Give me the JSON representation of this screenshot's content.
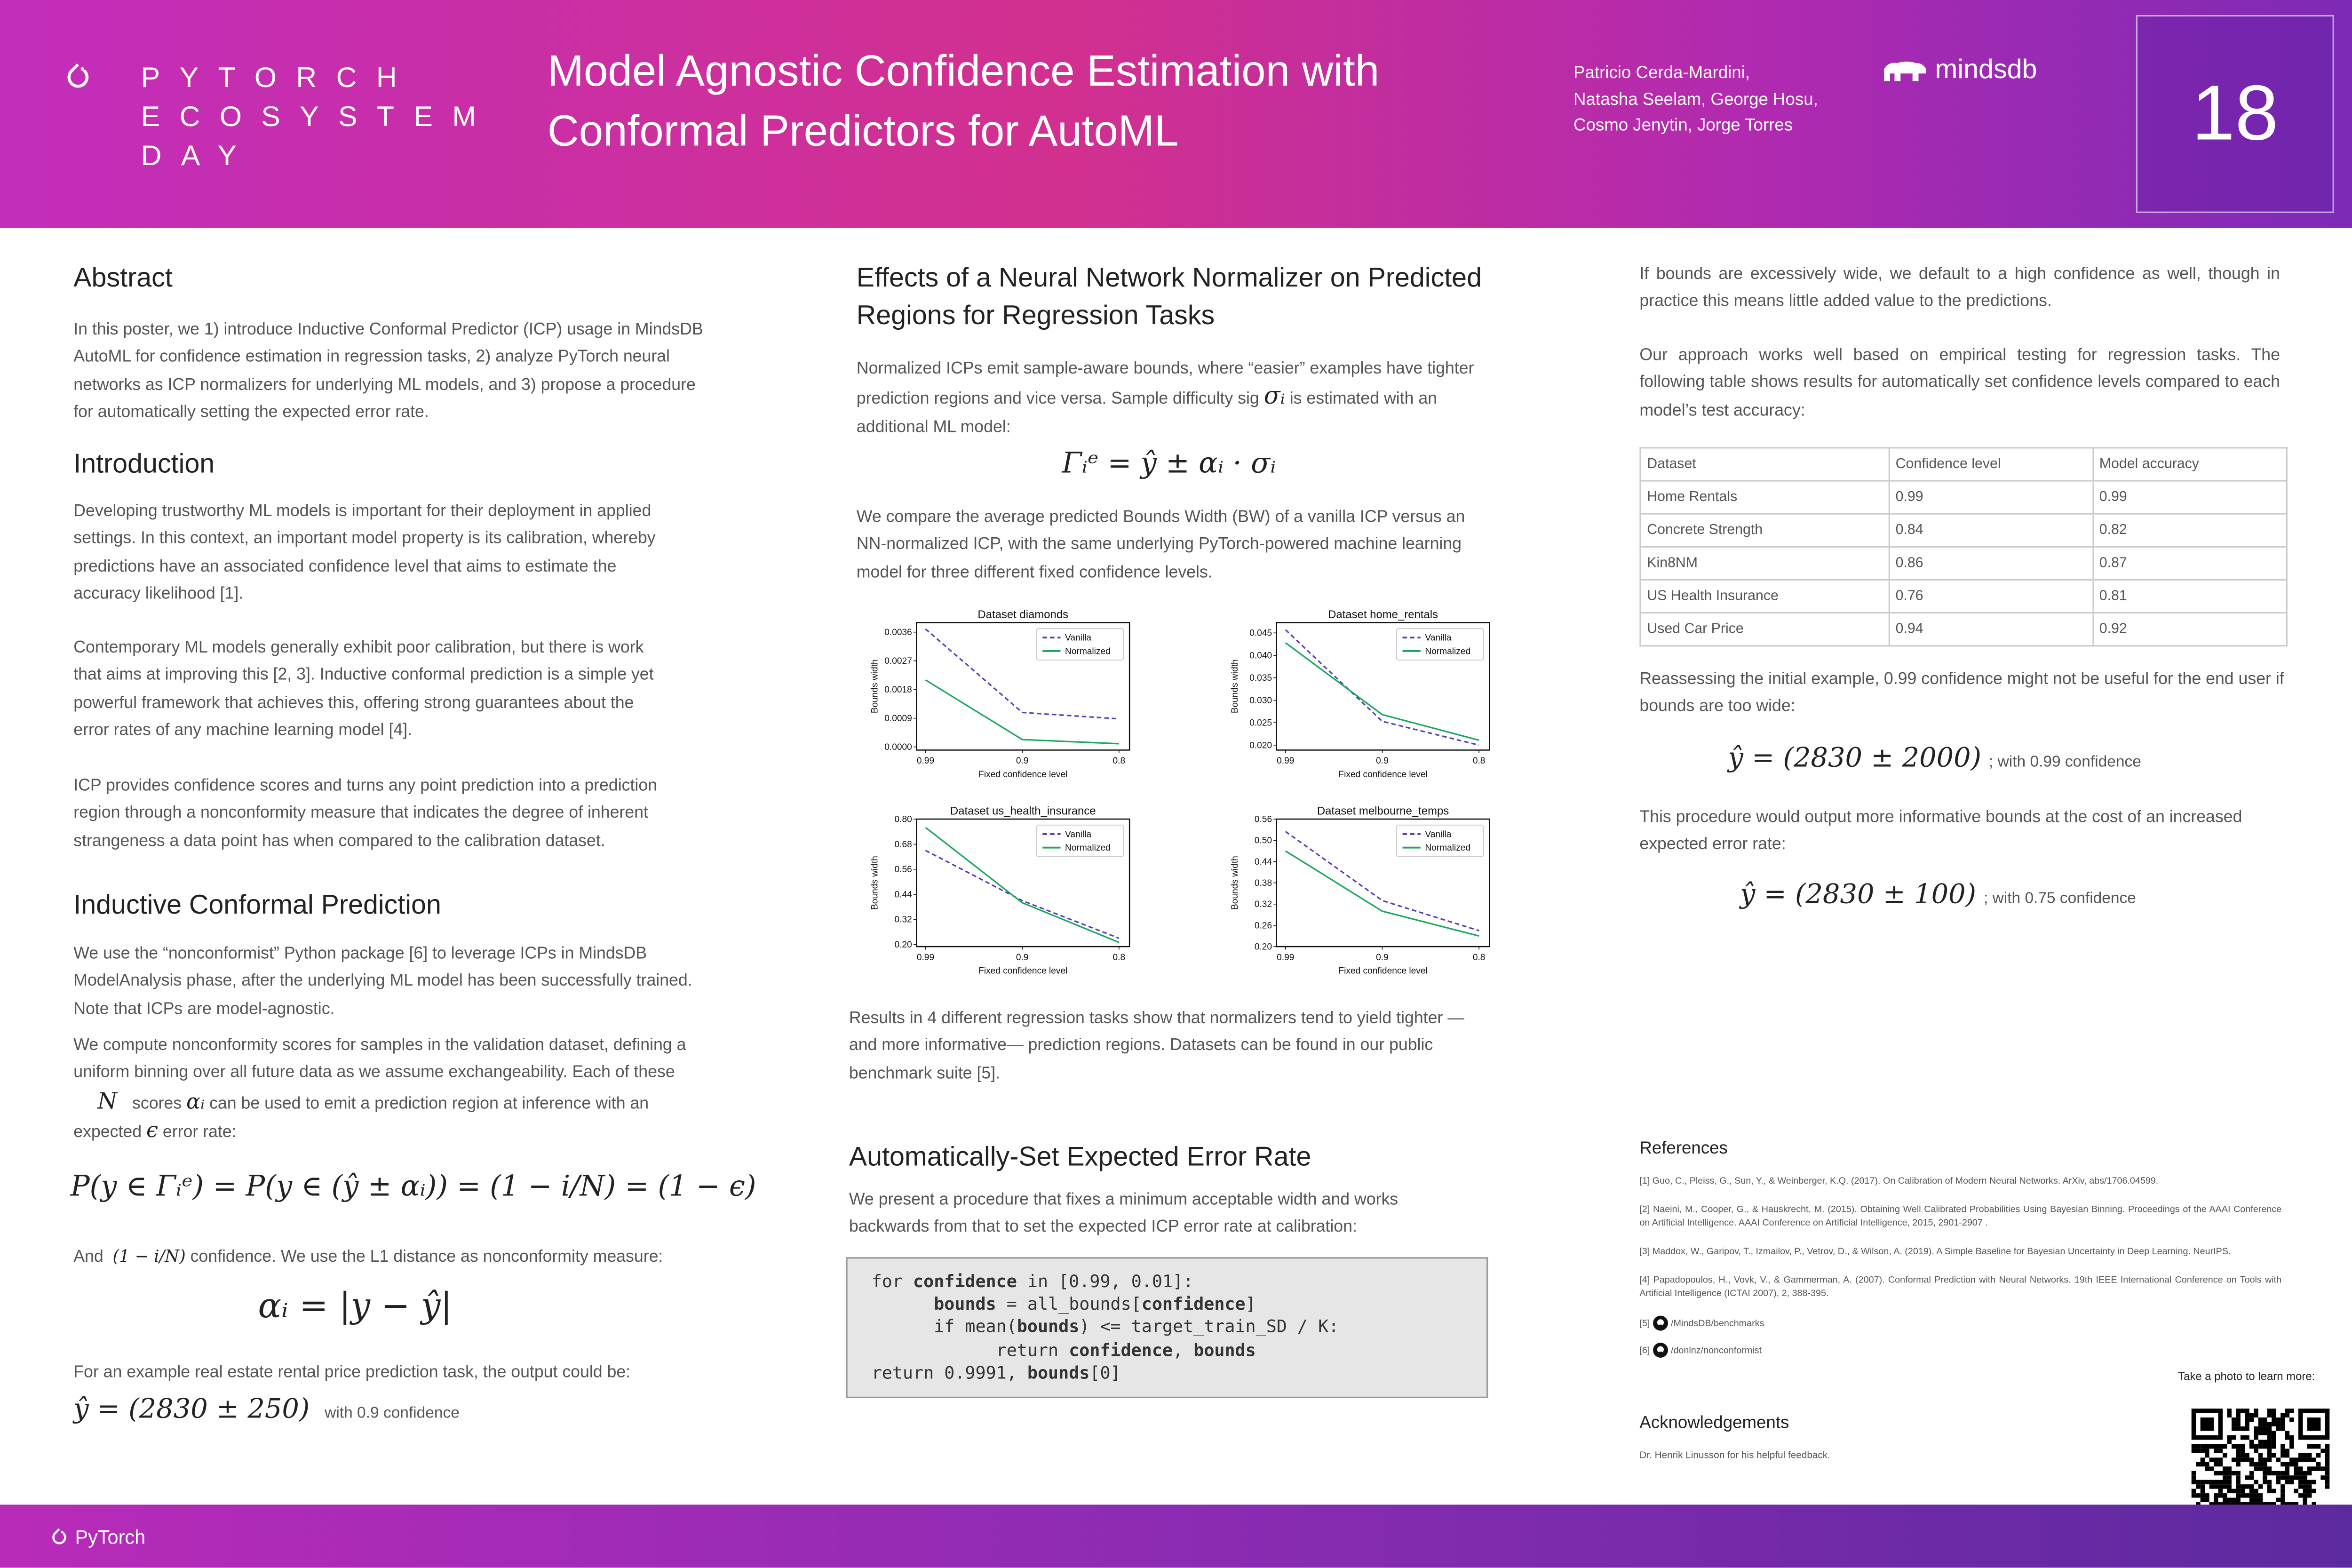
{
  "header": {
    "event": [
      "PYTORCH",
      "ECOSYSTEM",
      "DAY"
    ],
    "title": [
      "Model Agnostic Confidence Estimation with",
      "Conformal Predictors for AutoML"
    ],
    "authors": [
      "Patricio Cerda-Mardini,",
      "Natasha Seelam, George Hosu,",
      "Cosmo Jenytin, Jorge Torres"
    ],
    "logo": "mindsdb",
    "poster_number": "18"
  },
  "footer": {
    "logo": "PyTorch"
  },
  "abstract": {
    "heading": "Abstract",
    "text": "In this poster, we 1) introduce Inductive Conformal Predictor (ICP) usage in MindsDB AutoML for confidence estimation in regression tasks, 2) analyze PyTorch neural networks as ICP normalizers for underlying ML models, and 3) propose a procedure for automatically setting the expected error rate."
  },
  "introduction": {
    "heading": "Introduction",
    "paragraphs": [
      "Developing trustworthy ML models is important for their deployment in applied settings. In this context, an important model property is its calibration, whereby predictions have an associated confidence level that aims to estimate the accuracy likelihood [1].",
      "Contemporary ML models generally exhibit poor calibration, but there is work that aims at improving this [2, 3]. Inductive conformal prediction is a simple yet powerful framework that achieves this, offering strong guarantees about the error rates of any machine learning model [4].",
      "ICP provides confidence scores and turns any point prediction into a prediction region through a nonconformity measure that indicates the degree of inherent strangeness a data point has when compared to the calibration dataset."
    ]
  },
  "icp": {
    "heading": "Inductive Conformal Prediction",
    "p1": "We use the “nonconformist” Python package [6] to leverage ICPs in MindsDB ModelAnalysis phase, after the underlying ML model has been successfully trained. Note that ICPs are model-agnostic.",
    "p2": "We compute nonconformity scores for samples in the validation dataset, defining a uniform binning over all future data as we assume exchangeability. Each of these",
    "p3a": "N",
    "p3b": "scores",
    "p3c": "αᵢ",
    "p3d": "can be used to emit a prediction region at inference with an",
    "p4a": "expected",
    "p4b": "ϵ",
    "p4c": "error rate:",
    "eq1": "P(y ∈ Γᵢᵉ) = P(y ∈ (ŷ ± αᵢ)) = (1 − i/N) = (1 − ϵ)",
    "and_a": "And",
    "and_b": "(1 − i/N)",
    "and_c": "confidence. We use the L1 distance as nonconformity measure:",
    "eq2": "αᵢ = |y − ŷ|",
    "example": "For an example real estate rental price prediction task, the output could be:",
    "eq3": "ŷ = (2830 ± 250)",
    "eq3_note": "with 0.9 confidence"
  },
  "effects": {
    "heading": "Effects of a Neural Network Normalizer on Predicted Regions for Regression Tasks",
    "p1a": "Normalized ICPs emit sample-aware bounds, where “easier” examples have tighter prediction regions and vice versa. Sample difficulty sig",
    "p1b": "σᵢ",
    "p1c": "is estimated with an additional ML model:",
    "eq": "Γᵢᵉ = ŷ ± αᵢ · σᵢ",
    "p2": "We compare the average predicted Bounds Width (BW) of a vanilla ICP versus an NN-normalized ICP, with the same underlying PyTorch-powered machine learning model for three different fixed confidence levels.",
    "p3": "Results in 4 different regression tasks show that normalizers tend to yield tighter —and more informative— prediction regions. Datasets can be found in our public benchmark suite [5]."
  },
  "chart_data": [
    {
      "type": "line",
      "title": "Dataset diamonds",
      "xlabel": "Fixed confidence level",
      "ylabel": "Bounds width",
      "categories": [
        "0.99",
        "0.9",
        "0.8"
      ],
      "yticks": [
        "0.0000",
        "0.0009",
        "0.0018",
        "0.0027",
        "0.0036"
      ],
      "ylim": [
        -0.0001,
        0.0039
      ],
      "legend": "top-right",
      "series": [
        {
          "name": "Vanilla",
          "values": [
            0.0037,
            0.00108,
            0.00088
          ],
          "color": "#5b3cb4",
          "dash": true
        },
        {
          "name": "Normalized",
          "values": [
            0.0021,
            0.00023,
            0.0001
          ],
          "color": "#1aa860",
          "dash": false
        }
      ]
    },
    {
      "type": "line",
      "title": "Dataset home_rentals",
      "xlabel": "Fixed confidence level",
      "ylabel": "Bounds width",
      "categories": [
        "0.99",
        "0.9",
        "0.8"
      ],
      "yticks": [
        "0.020",
        "0.025",
        "0.030",
        "0.035",
        "0.040",
        "0.045"
      ],
      "ylim": [
        0.0189,
        0.0473
      ],
      "legend": "top-right",
      "series": [
        {
          "name": "Vanilla",
          "values": [
            0.0457,
            0.0253,
            0.02
          ],
          "color": "#5b3cb4",
          "dash": true
        },
        {
          "name": "Normalized",
          "values": [
            0.0428,
            0.0268,
            0.0211
          ],
          "color": "#1aa860",
          "dash": false
        }
      ]
    },
    {
      "type": "line",
      "title": "Dataset us_health_insurance",
      "xlabel": "Fixed confidence level",
      "ylabel": "Bounds width",
      "categories": [
        "0.99",
        "0.9",
        "0.8"
      ],
      "yticks": [
        "0.20",
        "0.32",
        "0.44",
        "0.56",
        "0.68",
        "0.80"
      ],
      "ylim": [
        0.19,
        0.8
      ],
      "legend": "top-right",
      "series": [
        {
          "name": "Vanilla",
          "values": [
            0.65,
            0.41,
            0.23
          ],
          "color": "#5b3cb4",
          "dash": true
        },
        {
          "name": "Normalized",
          "values": [
            0.76,
            0.4,
            0.21
          ],
          "color": "#1aa860",
          "dash": false
        }
      ]
    },
    {
      "type": "line",
      "title": "Dataset melbourne_temps",
      "xlabel": "Fixed confidence level",
      "ylabel": "Bounds width",
      "categories": [
        "0.99",
        "0.9",
        "0.8"
      ],
      "yticks": [
        "0.20",
        "0.26",
        "0.32",
        "0.38",
        "0.44",
        "0.50",
        "0.56"
      ],
      "ylim": [
        0.2,
        0.56
      ],
      "legend": "top-right",
      "series": [
        {
          "name": "Vanilla",
          "values": [
            0.525,
            0.33,
            0.245
          ],
          "color": "#5b3cb4",
          "dash": true
        },
        {
          "name": "Normalized",
          "values": [
            0.47,
            0.3,
            0.23
          ],
          "color": "#1aa860",
          "dash": false
        }
      ]
    }
  ],
  "auto": {
    "heading": "Automatically-Set Expected Error Rate",
    "text": "We present a procedure that fixes a minimum acceptable width and works backwards from that to set the expected ICP error rate at calibration:",
    "code": [
      "for confidence in [0.99, 0.01]:",
      "      bounds = all_bounds[confidence]",
      "      if mean(bounds) <= target_train_SD / K:",
      "            return confidence, bounds",
      "return 0.9991, bounds[0]"
    ]
  },
  "right": {
    "p1": "If bounds are excessively wide, we default to a high confidence as well, though in practice this means little added value to the predictions.",
    "p2": "Our approach works well based on empirical testing for regression tasks. The following table shows results for automatically set confidence levels compared to each model’s test accuracy:",
    "table": {
      "headers": [
        "Dataset",
        "Confidence level",
        "Model accuracy"
      ],
      "rows": [
        [
          "Home Rentals",
          "0.99",
          "0.99"
        ],
        [
          "Concrete Strength",
          "0.84",
          "0.82"
        ],
        [
          "Kin8NM",
          "0.86",
          "0.87"
        ],
        [
          "US Health Insurance",
          "0.76",
          "0.81"
        ],
        [
          "Used Car Price",
          "0.94",
          "0.92"
        ]
      ]
    },
    "p3": "Reassessing the initial example, 0.99 confidence might not be useful for the end user if bounds are too wide:",
    "eq1": "ŷ = (2830 ± 2000)",
    "eq1_note": "; with 0.99 confidence",
    "p4": "This procedure would output more informative bounds at the cost of an increased expected error rate:",
    "eq2": "ŷ = (2830 ± 100)",
    "eq2_note": "; with 0.75 confidence"
  },
  "references": {
    "heading": "References",
    "items": [
      "[1] Guo, C., Pleiss, G., Sun, Y., & Weinberger, K.Q. (2017). On Calibration of Modern Neural Networks. ArXiv, abs/1706.04599.",
      "[2] Naeini, M., Cooper, G., & Hauskrecht, M. (2015). Obtaining Well Calibrated Probabilities Using Bayesian Binning. Proceedings of the AAAI Conference on Artificial Intelligence. AAAI Conference on Artificial Intelligence, 2015, 2901-2907 .",
      "[3] Maddox, W., Garipov, T., Izmailov, P., Vetrov, D., & Wilson, A. (2019). A Simple Baseline for Bayesian Uncertainty in Deep Learning. NeurIPS.",
      "[4] Papadopoulos, H., Vovk, V., & Gammerman, A. (2007). Conformal Prediction with Neural Networks. 19th IEEE International Conference on Tools with Artificial Intelligence (ICTAI 2007), 2, 388-395."
    ],
    "gh": [
      {
        "num": "[5]",
        "path": "/MindsDB/benchmarks"
      },
      {
        "num": "[6]",
        "path": "/donlnz/nonconformist"
      }
    ]
  },
  "qr_caption": "Take a photo to learn more:",
  "ack": {
    "heading": "Acknowledgements",
    "text": "Dr. Henrik Linusson for his helpful feedback."
  }
}
